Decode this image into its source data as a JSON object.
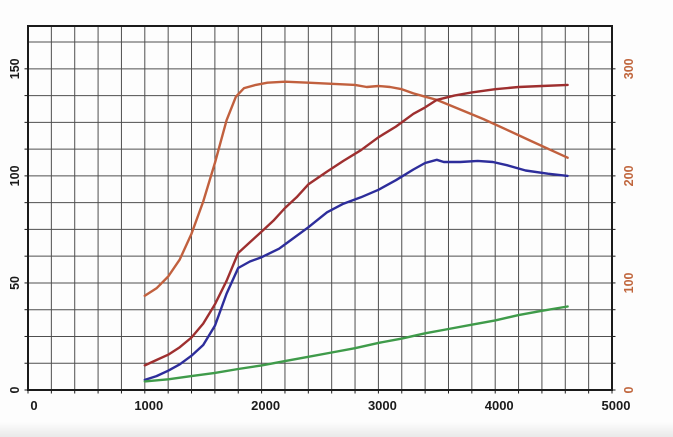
{
  "chart_data": {
    "type": "line",
    "title": "",
    "description": "Dyno-style run chart with four curves on an rpm axis, dense black grid, dual vertical axes (black left scale, orange right scale)",
    "x_axis": {
      "min": 0,
      "max": 5000,
      "minor_step": 200,
      "tick_values": [
        0,
        1000,
        2000,
        3000,
        4000,
        5000
      ],
      "tick_labels": [
        "0",
        "1000",
        "2000",
        "3000",
        "4000",
        "5000"
      ],
      "label_color": "#1b1b1b"
    },
    "y_axis_left": {
      "min": 0,
      "max": 170,
      "minor_step": 12.5,
      "tick_values": [
        0,
        50,
        100,
        150
      ],
      "tick_labels": [
        "0",
        "50",
        "100",
        "150"
      ],
      "label_color": "#1b1b1b",
      "label_rotation": -90
    },
    "y_axis_right": {
      "min": 0,
      "max": 340,
      "tick_values": [
        0,
        100,
        200,
        300
      ],
      "tick_labels": [
        "0",
        "100",
        "200",
        "300"
      ],
      "label_color": "#c0663d",
      "label_rotation": -90
    },
    "grid": {
      "show": true,
      "line_color": "#4f4f4f",
      "border_color": "#1b1b1b",
      "tick_color": "#1b1b1b"
    },
    "legend": "none",
    "series": [
      {
        "name": "orange-curve",
        "axis": "right",
        "color": "#c1603e",
        "points": [
          [
            1000,
            88
          ],
          [
            1100,
            95
          ],
          [
            1200,
            106
          ],
          [
            1300,
            122
          ],
          [
            1400,
            146
          ],
          [
            1500,
            176
          ],
          [
            1600,
            212
          ],
          [
            1700,
            252
          ],
          [
            1780,
            274
          ],
          [
            1850,
            282
          ],
          [
            1950,
            285
          ],
          [
            2050,
            287
          ],
          [
            2200,
            288
          ],
          [
            2400,
            287
          ],
          [
            2600,
            286
          ],
          [
            2800,
            285
          ],
          [
            2900,
            283
          ],
          [
            3000,
            284
          ],
          [
            3100,
            283
          ],
          [
            3200,
            281
          ],
          [
            3300,
            277
          ],
          [
            3400,
            274
          ],
          [
            3500,
            271
          ],
          [
            3700,
            262
          ],
          [
            3900,
            253
          ],
          [
            4100,
            243
          ],
          [
            4300,
            233
          ],
          [
            4500,
            223
          ],
          [
            4620,
            217
          ]
        ]
      },
      {
        "name": "red-curve",
        "axis": "left",
        "color": "#9e2f2f",
        "points": [
          [
            1000,
            11.5
          ],
          [
            1100,
            14
          ],
          [
            1200,
            16.5
          ],
          [
            1300,
            20
          ],
          [
            1400,
            24.5
          ],
          [
            1500,
            31
          ],
          [
            1600,
            40
          ],
          [
            1700,
            51
          ],
          [
            1800,
            64
          ],
          [
            1900,
            69
          ],
          [
            2000,
            74
          ],
          [
            2100,
            79
          ],
          [
            2200,
            85
          ],
          [
            2300,
            90
          ],
          [
            2400,
            96
          ],
          [
            2560,
            102
          ],
          [
            2700,
            107
          ],
          [
            2850,
            112
          ],
          [
            3000,
            118
          ],
          [
            3150,
            123
          ],
          [
            3300,
            129
          ],
          [
            3400,
            132
          ],
          [
            3500,
            135.5
          ],
          [
            3650,
            137.5
          ],
          [
            3800,
            139
          ],
          [
            4000,
            140.5
          ],
          [
            4200,
            141.5
          ],
          [
            4400,
            142
          ],
          [
            4620,
            142.5
          ]
        ]
      },
      {
        "name": "blue-curve",
        "axis": "left",
        "color": "#2d2d9b",
        "points": [
          [
            1000,
            4.7
          ],
          [
            1100,
            6.5
          ],
          [
            1200,
            9
          ],
          [
            1300,
            12
          ],
          [
            1400,
            16
          ],
          [
            1500,
            21
          ],
          [
            1600,
            30
          ],
          [
            1700,
            45
          ],
          [
            1800,
            57
          ],
          [
            1900,
            60
          ],
          [
            2000,
            62
          ],
          [
            2150,
            66
          ],
          [
            2250,
            70
          ],
          [
            2400,
            76
          ],
          [
            2560,
            83
          ],
          [
            2700,
            87
          ],
          [
            2850,
            90
          ],
          [
            3000,
            93.5
          ],
          [
            3150,
            98
          ],
          [
            3300,
            103
          ],
          [
            3400,
            106
          ],
          [
            3500,
            107.5
          ],
          [
            3560,
            106.5
          ],
          [
            3700,
            106.5
          ],
          [
            3850,
            107
          ],
          [
            3980,
            106.5
          ],
          [
            4100,
            105
          ],
          [
            4260,
            102.5
          ],
          [
            4450,
            101
          ],
          [
            4620,
            100
          ]
        ]
      },
      {
        "name": "green-curve",
        "axis": "left",
        "color": "#3f9b4a",
        "points": [
          [
            1000,
            4
          ],
          [
            1200,
            5
          ],
          [
            1400,
            6.5
          ],
          [
            1600,
            8
          ],
          [
            1800,
            9.8
          ],
          [
            2000,
            11.5
          ],
          [
            2200,
            13.5
          ],
          [
            2400,
            15.5
          ],
          [
            2600,
            17.5
          ],
          [
            2800,
            19.5
          ],
          [
            3000,
            22
          ],
          [
            3200,
            24
          ],
          [
            3400,
            26.5
          ],
          [
            3600,
            28.5
          ],
          [
            3800,
            30.5
          ],
          [
            4000,
            32.5
          ],
          [
            4200,
            35
          ],
          [
            4400,
            37
          ],
          [
            4620,
            39
          ]
        ]
      }
    ]
  }
}
